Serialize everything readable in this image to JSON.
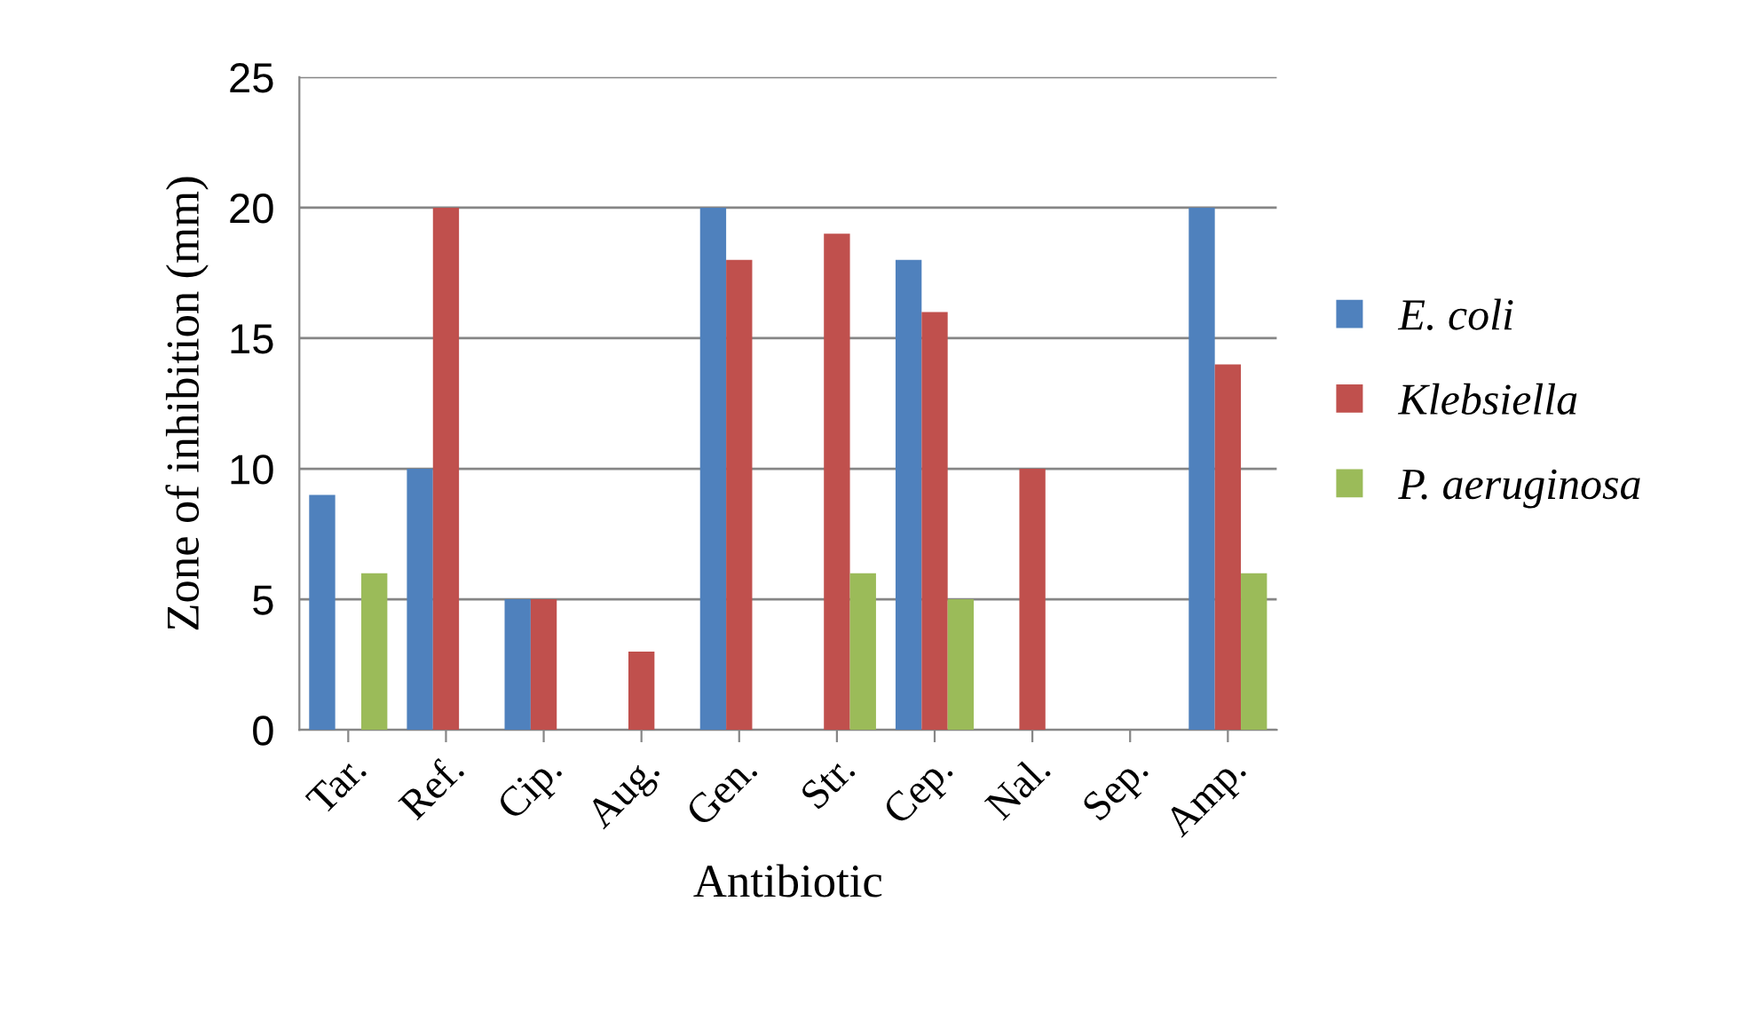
{
  "chart_data": {
    "type": "bar",
    "xlabel": "Antibiotic",
    "ylabel": "Zone of inhibition (mm)",
    "categories": [
      "Tar.",
      "Ref.",
      "Cip.",
      "Aug.",
      "Gen.",
      "Str.",
      "Cep.",
      "Nal.",
      "Sep.",
      "Amp."
    ],
    "series": [
      {
        "name": "E. coli",
        "color": "#4f81bd",
        "values": [
          9,
          10,
          5,
          0,
          20,
          0,
          18,
          0,
          0,
          20
        ]
      },
      {
        "name": "Klebsiella",
        "color": "#c0504d",
        "values": [
          0,
          20,
          5,
          3,
          18,
          19,
          16,
          10,
          0,
          14
        ]
      },
      {
        "name": "P. aeruginosa",
        "color": "#9bbb59",
        "values": [
          6,
          0,
          0,
          0,
          0,
          6,
          5,
          0,
          0,
          6
        ]
      }
    ],
    "ylim": [
      0,
      25
    ],
    "yticks": [
      0,
      5,
      10,
      15,
      20,
      25
    ],
    "grid": "y",
    "legend": "right"
  }
}
